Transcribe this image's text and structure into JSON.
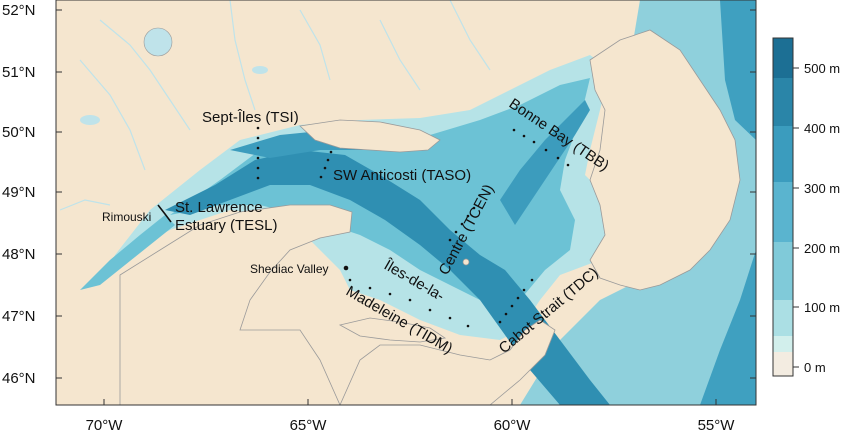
{
  "map": {
    "lat_labels": [
      "52°N",
      "51°N",
      "50°N",
      "49°N",
      "48°N",
      "47°N",
      "46°N"
    ],
    "lon_labels": [
      "70°W",
      "65°W",
      "60°W",
      "55°W"
    ],
    "colorbar": {
      "labels": [
        "500 m",
        "400 m",
        "300 m",
        "200 m",
        "100 m",
        "0 m"
      ],
      "colors": [
        "#1c6f94",
        "#2a85a8",
        "#3b9cbe",
        "#5ab4cf",
        "#80cad9",
        "#abdfe4",
        "#d2efec",
        "#f3ece1"
      ]
    },
    "colors": {
      "land": "#f5e6cf",
      "river": "#bfe3ea",
      "deep": "#2a85a8",
      "shelf": "#7fcad8",
      "shallow": "#b9e4e8"
    },
    "stations": {
      "tsi": "Sept-Îles (TSI)",
      "taso": "SW Anticosti (TASO)",
      "tbb": "Bonne Bay (TBB)",
      "tesl_line1": "St. Lawrence",
      "tesl_line2": "Estuary (TESL)",
      "rimouski": "Rimouski",
      "tcen": "Centre (TCEN)",
      "tdc": "Cabot Strait (TDC)",
      "shediac": "Shediac Valley",
      "tidm_line1": "Îles-de-la-",
      "tidm_line2": "Madeleine (TIDM)"
    }
  }
}
